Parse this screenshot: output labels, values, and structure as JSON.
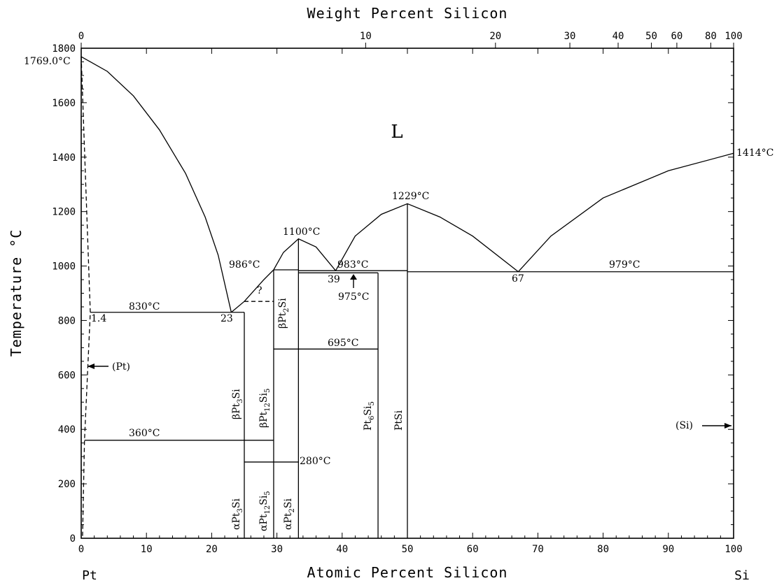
{
  "figure": {
    "top_axis_title": "Weight Percent Silicon",
    "bottom_axis_title": "Atomic Percent Silicon",
    "y_axis_title": "Temperature °C",
    "left_endmember": "Pt",
    "right_endmember": "Si",
    "liquid_label": "L"
  },
  "chart_data": {
    "type": "phase-diagram",
    "x_range": [
      0,
      100
    ],
    "y_range": [
      0,
      1800
    ],
    "x_ticks": [
      0,
      10,
      20,
      30,
      40,
      50,
      60,
      70,
      80,
      90,
      100
    ],
    "y_ticks": [
      0,
      200,
      400,
      600,
      800,
      1000,
      1200,
      1400,
      1600,
      1800
    ],
    "top_axis_ticks": [
      {
        "label": "0",
        "at_pct": 0
      },
      {
        "label": "10",
        "at_pct": 43.6
      },
      {
        "label": "20",
        "at_pct": 63.5
      },
      {
        "label": "30",
        "at_pct": 74.9
      },
      {
        "label": "40",
        "at_pct": 82.3
      },
      {
        "label": "50",
        "at_pct": 87.4
      },
      {
        "label": "60",
        "at_pct": 91.3
      },
      {
        "label": "80",
        "at_pct": 96.5
      },
      {
        "label": "100",
        "at_pct": 100
      }
    ],
    "liquidus": [
      {
        "name": "Pt-side liquidus",
        "points": [
          [
            0,
            1769
          ],
          [
            4,
            1715
          ],
          [
            8,
            1625
          ],
          [
            12,
            1500
          ],
          [
            16,
            1340
          ],
          [
            19,
            1180
          ],
          [
            21,
            1040
          ],
          [
            23,
            830
          ]
        ]
      },
      {
        "name": "Pt3Si/Pt12Si5 liquidus",
        "points": [
          [
            23,
            830
          ],
          [
            25,
            870
          ],
          [
            28,
            950
          ],
          [
            29.5,
            986
          ]
        ]
      },
      {
        "name": "Pt2Si liquidus",
        "points": [
          [
            29.5,
            986
          ],
          [
            31,
            1050
          ],
          [
            33.3,
            1100
          ],
          [
            36,
            1070
          ],
          [
            39,
            983
          ]
        ]
      },
      {
        "name": "PtSi liquidus",
        "points": [
          [
            39,
            983
          ],
          [
            42,
            1110
          ],
          [
            46,
            1190
          ],
          [
            50,
            1229
          ],
          [
            55,
            1180
          ],
          [
            60,
            1110
          ],
          [
            67,
            979
          ]
        ]
      },
      {
        "name": "Si liquidus",
        "points": [
          [
            67,
            979
          ],
          [
            72,
            1110
          ],
          [
            80,
            1250
          ],
          [
            90,
            1350
          ],
          [
            100,
            1414
          ]
        ]
      }
    ],
    "solvus_dashed": [
      {
        "name": "(Pt) solvus",
        "points": [
          [
            0,
            1769
          ],
          [
            1.4,
            830
          ],
          [
            0.5,
            360
          ],
          [
            0.2,
            0
          ]
        ]
      },
      {
        "name": "beta Pt12Si5 upper (uncertain)",
        "points": [
          [
            25,
            870
          ],
          [
            29.5,
            870
          ]
        ]
      }
    ],
    "invariants": [
      {
        "T": 830,
        "x1": 1.4,
        "x2": 25,
        "label": "830°C"
      },
      {
        "T": 986,
        "x1": 29.5,
        "x2": 33.3,
        "label": "986°C"
      },
      {
        "T": 983,
        "x1": 33.3,
        "x2": 50,
        "label": "983°C"
      },
      {
        "T": 975,
        "x1": 33.3,
        "x2": 45.5,
        "label": "975°C"
      },
      {
        "T": 979,
        "x1": 50,
        "x2": 100,
        "label": "979°C"
      },
      {
        "T": 695,
        "x1": 29.5,
        "x2": 45.5,
        "label": "695°C"
      },
      {
        "T": 360,
        "x1": 0.5,
        "x2": 29.5,
        "label": "360°C"
      },
      {
        "T": 280,
        "x1": 25,
        "x2": 33.3,
        "label": "280°C"
      }
    ],
    "compounds": [
      {
        "x": 25,
        "T_top": 830
      },
      {
        "x": 29.5,
        "T_top": 986
      },
      {
        "x": 33.3,
        "T_top": 1100
      },
      {
        "x": 45.5,
        "T_top": 975
      },
      {
        "x": 50,
        "T_top": 1229
      }
    ],
    "annotations": {
      "pt_melting": "1769.0°C",
      "si_melting": "1414°C",
      "pt2si_melting": "1100°C",
      "ptsi_melting": "1229°C",
      "eut_23": "23",
      "eut_39": "39",
      "eut_67": "67",
      "solubility_1_4": "1.4",
      "question_mark": "?",
      "pt_phase": "(Pt)",
      "si_phase": "(Si)"
    },
    "phase_labels": {
      "beta_pt3si": "βPt3Si",
      "beta_pt12si5": "βPt12Si5",
      "beta_pt2si": "βPt2Si",
      "pt6si5": "Pt6Si5",
      "ptsi": "PtSi",
      "alpha_pt3si": "αPt3Si",
      "alpha_pt12si5": "αPt12Si5",
      "alpha_pt2si": "αPt2Si"
    }
  }
}
